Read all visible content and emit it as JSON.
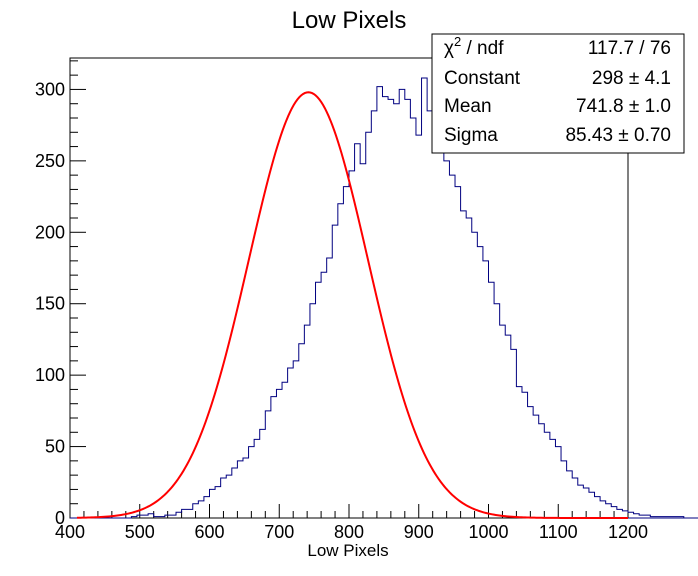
{
  "chart_data": {
    "type": "histogram",
    "title": "Low Pixels",
    "xlabel": "Low Pixels",
    "ylabel": "",
    "xlim": [
      400,
      1200
    ],
    "ylim": [
      0,
      322
    ],
    "xticks": [
      "400",
      "500",
      "600",
      "700",
      "800",
      "900",
      "1000",
      "1100",
      "1200"
    ],
    "yticks": [
      "0",
      "50",
      "100",
      "150",
      "200",
      "250",
      "300"
    ],
    "bin_start": 400,
    "bin_width": 8,
    "counts": [
      0,
      0,
      0,
      0,
      0,
      0,
      0,
      0,
      0,
      0,
      0,
      1,
      2,
      2,
      3,
      1,
      1,
      2,
      2,
      4,
      6,
      6,
      10,
      12,
      15,
      20,
      22,
      28,
      30,
      35,
      40,
      42,
      50,
      55,
      62,
      75,
      85,
      90,
      95,
      105,
      110,
      122,
      135,
      150,
      165,
      172,
      182,
      205,
      220,
      232,
      243,
      262,
      248,
      270,
      285,
      302,
      295,
      293,
      290,
      300,
      293,
      280,
      268,
      308,
      285,
      275,
      268,
      250,
      240,
      232,
      215,
      210,
      200,
      190,
      180,
      165,
      150,
      135,
      128,
      118,
      92,
      88,
      78,
      72,
      66,
      60,
      55,
      50,
      40,
      33,
      28,
      23,
      21,
      18,
      15,
      12,
      10,
      8,
      6,
      5,
      4,
      3,
      2,
      2,
      1,
      1,
      1,
      1,
      1,
      1,
      0,
      0,
      0,
      0,
      1,
      0,
      0,
      0,
      0,
      0,
      0,
      0,
      0,
      0,
      0,
      0,
      0,
      0,
      0,
      0,
      0,
      0,
      0,
      0,
      0,
      0,
      0,
      0,
      0,
      0,
      0,
      0,
      0,
      0,
      0,
      0,
      0,
      0,
      0,
      0,
      0,
      0,
      0,
      0,
      0,
      0,
      0,
      0,
      0,
      0,
      0,
      0,
      0,
      0,
      0,
      0,
      0,
      0,
      0,
      0,
      0,
      0,
      0,
      0,
      0,
      0,
      0,
      0,
      0,
      0,
      0,
      0,
      0,
      0,
      0,
      0,
      0,
      0,
      0,
      0,
      0,
      0,
      0,
      0,
      0,
      0,
      0,
      0,
      0,
      0,
      0,
      0,
      0,
      0,
      0,
      0,
      0,
      0,
      0,
      0,
      0,
      0,
      0,
      0,
      0,
      0
    ],
    "fit": {
      "function": "gaus",
      "constant": 298,
      "mean": 741.8,
      "sigma": 85.43,
      "range": [
        410,
        1200
      ]
    },
    "stats_box": [
      {
        "label_main": "χ",
        "label_sup": "2",
        "label_rest": " / ndf",
        "value": "117.7 / 76"
      },
      {
        "label_main": "Constant",
        "label_sup": "",
        "label_rest": "",
        "value": "298 ± 4.1"
      },
      {
        "label_main": "Mean",
        "label_sup": "",
        "label_rest": "",
        "value": "741.8 ± 1.0"
      },
      {
        "label_main": "Sigma",
        "label_sup": "",
        "label_rest": "",
        "value": "85.43 ± 0.70"
      }
    ],
    "colors": {
      "histogram": "#000080",
      "fit": "#ff0000",
      "frame": "#000000"
    }
  }
}
